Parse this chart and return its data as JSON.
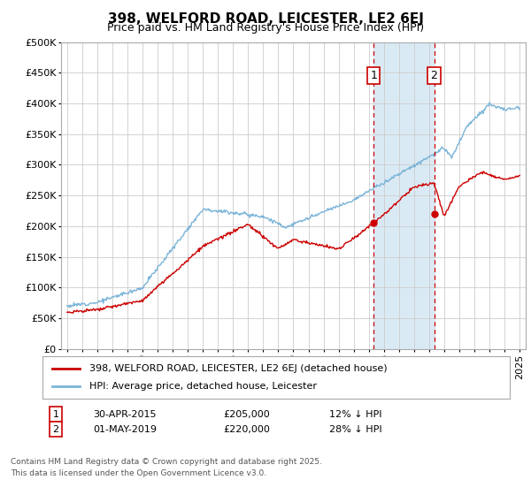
{
  "title": "398, WELFORD ROAD, LEICESTER, LE2 6EJ",
  "subtitle": "Price paid vs. HM Land Registry's House Price Index (HPI)",
  "ylim": [
    0,
    500000
  ],
  "yticks": [
    0,
    50000,
    100000,
    150000,
    200000,
    250000,
    300000,
    350000,
    400000,
    450000,
    500000
  ],
  "ytick_labels": [
    "£0",
    "£50K",
    "£100K",
    "£150K",
    "£200K",
    "£250K",
    "£300K",
    "£350K",
    "£400K",
    "£450K",
    "£500K"
  ],
  "hpi_color": "#7ab4d8",
  "price_color": "#cc0000",
  "shade_color": "#daeaf5",
  "t1_year": 2015.33,
  "t2_year": 2019.33,
  "transaction1_date": "30-APR-2015",
  "transaction1_price": 205000,
  "transaction1_pct": "12% ↓ HPI",
  "transaction2_date": "01-MAY-2019",
  "transaction2_price": 220000,
  "transaction2_pct": "28% ↓ HPI",
  "legend_line1": "398, WELFORD ROAD, LEICESTER, LE2 6EJ (detached house)",
  "legend_line2": "HPI: Average price, detached house, Leicester",
  "footnote": "Contains HM Land Registry data © Crown copyright and database right 2025.\nThis data is licensed under the Open Government Licence v3.0.",
  "bg_color": "#ffffff",
  "grid_color": "#cccccc",
  "title_fontsize": 11,
  "subtitle_fontsize": 9,
  "tick_fontsize": 8,
  "label_fontsize": 8.5
}
